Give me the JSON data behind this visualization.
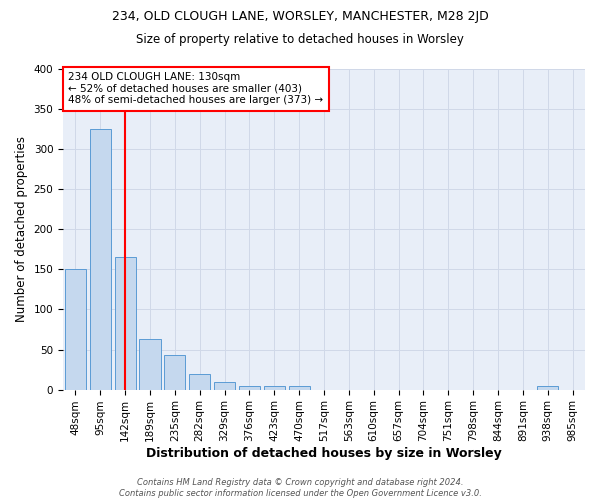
{
  "title1": "234, OLD CLOUGH LANE, WORSLEY, MANCHESTER, M28 2JD",
  "title2": "Size of property relative to detached houses in Worsley",
  "xlabel": "Distribution of detached houses by size in Worsley",
  "ylabel": "Number of detached properties",
  "bar_labels": [
    "48sqm",
    "95sqm",
    "142sqm",
    "189sqm",
    "235sqm",
    "282sqm",
    "329sqm",
    "376sqm",
    "423sqm",
    "470sqm",
    "517sqm",
    "563sqm",
    "610sqm",
    "657sqm",
    "704sqm",
    "751sqm",
    "798sqm",
    "844sqm",
    "891sqm",
    "938sqm",
    "985sqm"
  ],
  "bar_values": [
    150,
    325,
    165,
    63,
    43,
    20,
    10,
    5,
    4,
    4,
    0,
    0,
    0,
    0,
    0,
    0,
    0,
    0,
    0,
    4,
    0
  ],
  "bar_color": "#c5d8ee",
  "bar_edgecolor": "#5b9bd5",
  "redline_x": 2,
  "annotation_line1": "234 OLD CLOUGH LANE: 130sqm",
  "annotation_line2": "← 52% of detached houses are smaller (403)",
  "annotation_line3": "48% of semi-detached houses are larger (373) →",
  "annotation_box_color": "white",
  "annotation_box_edgecolor": "red",
  "redline_color": "red",
  "footer": "Contains HM Land Registry data © Crown copyright and database right 2024.\nContains public sector information licensed under the Open Government Licence v3.0.",
  "ylim": [
    0,
    400
  ],
  "yticks": [
    0,
    50,
    100,
    150,
    200,
    250,
    300,
    350,
    400
  ],
  "grid_color": "#d0d8e8",
  "background_color": "#e8eef8",
  "title1_fontsize": 9,
  "title2_fontsize": 8.5,
  "xlabel_fontsize": 9,
  "ylabel_fontsize": 8.5,
  "tick_fontsize": 7.5,
  "footer_fontsize": 6,
  "annotation_fontsize": 7.5
}
